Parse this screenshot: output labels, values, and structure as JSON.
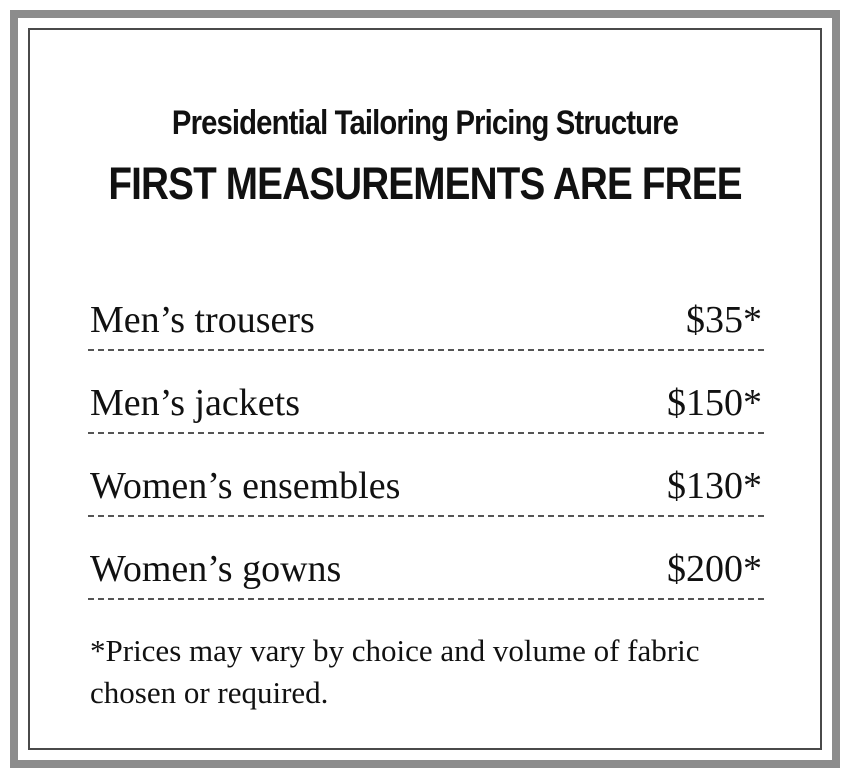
{
  "sign": {
    "title": "Presidential Tailoring Pricing Structure",
    "subtitle": "FIRST MEASUREMENTS ARE FREE",
    "items": [
      {
        "name": "Men’s trousers",
        "price": "$35*"
      },
      {
        "name": "Men’s jackets",
        "price": "$150*"
      },
      {
        "name": "Women’s ensembles",
        "price": "$130*"
      },
      {
        "name": "Women’s gowns",
        "price": "$200*"
      }
    ],
    "footnote": "*Prices may vary by choice and volume of fabric chosen or required."
  },
  "colors": {
    "outer_border": "#8c8c8c",
    "inner_border": "#4a4a4a",
    "text": "#111111",
    "background": "#ffffff"
  }
}
